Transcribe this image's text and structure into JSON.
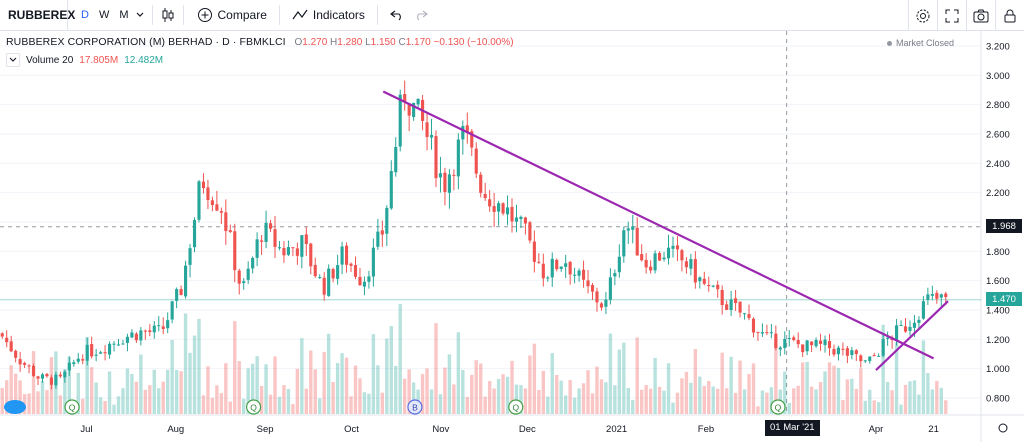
{
  "toolbar": {
    "symbol": "RUBBEREX",
    "timeframes": [
      "D",
      "W",
      "M"
    ],
    "active_timeframe": "D",
    "compare_label": "Compare",
    "indicators_label": "Indicators"
  },
  "legend": {
    "title": "RUBBEREX CORPORATION (M) BERHAD · D · FBMKLCI",
    "open_key": "O",
    "open": "1.270",
    "high_key": "H",
    "high": "1.280",
    "low_key": "L",
    "low": "1.150",
    "close_key": "C",
    "close": "1.170",
    "change": "−0.130 (−10.00%)",
    "volume_label": "Volume 20",
    "volume_1": "17.805M",
    "volume_2": "12.482M",
    "market_status": "Market Closed"
  },
  "price_tags": {
    "dashed_level": "1.968",
    "last_price": "1.470"
  },
  "crosshair_date": "01 Mar '21",
  "colors": {
    "up": "#26a69a",
    "down": "#ef5350",
    "trendline": "#9c27b0",
    "accent": "#2962ff"
  },
  "chart_data": {
    "type": "candlestick",
    "y_ticks": [
      "3.200",
      "3.000",
      "2.800",
      "2.600",
      "2.400",
      "2.200",
      "2.000",
      "1.800",
      "1.600",
      "1.400",
      "1.200",
      "1.000",
      "0.800"
    ],
    "x_ticks": [
      "Jul",
      "Aug",
      "Sep",
      "Oct",
      "Nov",
      "Dec",
      "2021",
      "Feb",
      "Mar",
      "Apr",
      "21"
    ],
    "ylim": [
      0.69,
      3.27
    ],
    "last_price": 1.47,
    "dashed_level": 1.968,
    "markers": [
      {
        "label": "Q",
        "x": "Jul"
      },
      {
        "label": "Q",
        "x": "Sep"
      },
      {
        "label": "B",
        "x": "Oct"
      },
      {
        "label": "Q",
        "x": "Dec"
      },
      {
        "label": "Q",
        "x": "Mar"
      }
    ],
    "trendlines": [
      {
        "from": {
          "x": "2020-10-12",
          "y": 2.89
        },
        "to": {
          "x": "2021-04-21",
          "y": 1.07
        }
      },
      {
        "from": {
          "x": "2021-04-01",
          "y": 0.99
        },
        "to": {
          "x": "2021-04-26",
          "y": 1.46
        }
      }
    ],
    "close_path": [
      [
        "2020-06-01",
        1.24
      ],
      [
        "2020-06-08",
        1.06
      ],
      [
        "2020-06-15",
        0.93
      ],
      [
        "2020-06-22",
        0.92
      ],
      [
        "2020-06-29",
        1.1
      ],
      [
        "2020-07-06",
        1.14
      ],
      [
        "2020-07-13",
        1.21
      ],
      [
        "2020-07-20",
        1.25
      ],
      [
        "2020-07-27",
        1.25
      ],
      [
        "2020-08-03",
        1.55
      ],
      [
        "2020-08-10",
        2.3
      ],
      [
        "2020-08-17",
        2.1
      ],
      [
        "2020-08-24",
        1.52
      ],
      [
        "2020-08-31",
        1.95
      ],
      [
        "2020-09-07",
        1.8
      ],
      [
        "2020-09-14",
        1.85
      ],
      [
        "2020-09-21",
        1.55
      ],
      [
        "2020-09-28",
        1.78
      ],
      [
        "2020-10-05",
        1.6
      ],
      [
        "2020-10-12",
        1.95
      ],
      [
        "2020-10-19",
        2.9
      ],
      [
        "2020-10-26",
        2.65
      ],
      [
        "2020-11-02",
        2.25
      ],
      [
        "2020-11-09",
        2.6
      ],
      [
        "2020-11-16",
        2.2
      ],
      [
        "2020-11-23",
        2.1
      ],
      [
        "2020-11-30",
        1.92
      ],
      [
        "2020-12-07",
        1.65
      ],
      [
        "2020-12-14",
        1.75
      ],
      [
        "2020-12-21",
        1.55
      ],
      [
        "2020-12-28",
        1.42
      ],
      [
        "2021-01-04",
        2.0
      ],
      [
        "2021-01-11",
        1.72
      ],
      [
        "2021-01-18",
        1.8
      ],
      [
        "2021-01-25",
        1.72
      ],
      [
        "2021-02-01",
        1.55
      ],
      [
        "2021-02-08",
        1.45
      ],
      [
        "2021-02-15",
        1.35
      ],
      [
        "2021-02-22",
        1.2
      ],
      [
        "2021-03-01",
        1.18
      ],
      [
        "2021-03-08",
        1.15
      ],
      [
        "2021-03-15",
        1.15
      ],
      [
        "2021-03-22",
        1.1
      ],
      [
        "2021-03-29",
        1.03
      ],
      [
        "2021-04-05",
        1.2
      ],
      [
        "2021-04-12",
        1.3
      ],
      [
        "2021-04-19",
        1.47
      ]
    ]
  }
}
